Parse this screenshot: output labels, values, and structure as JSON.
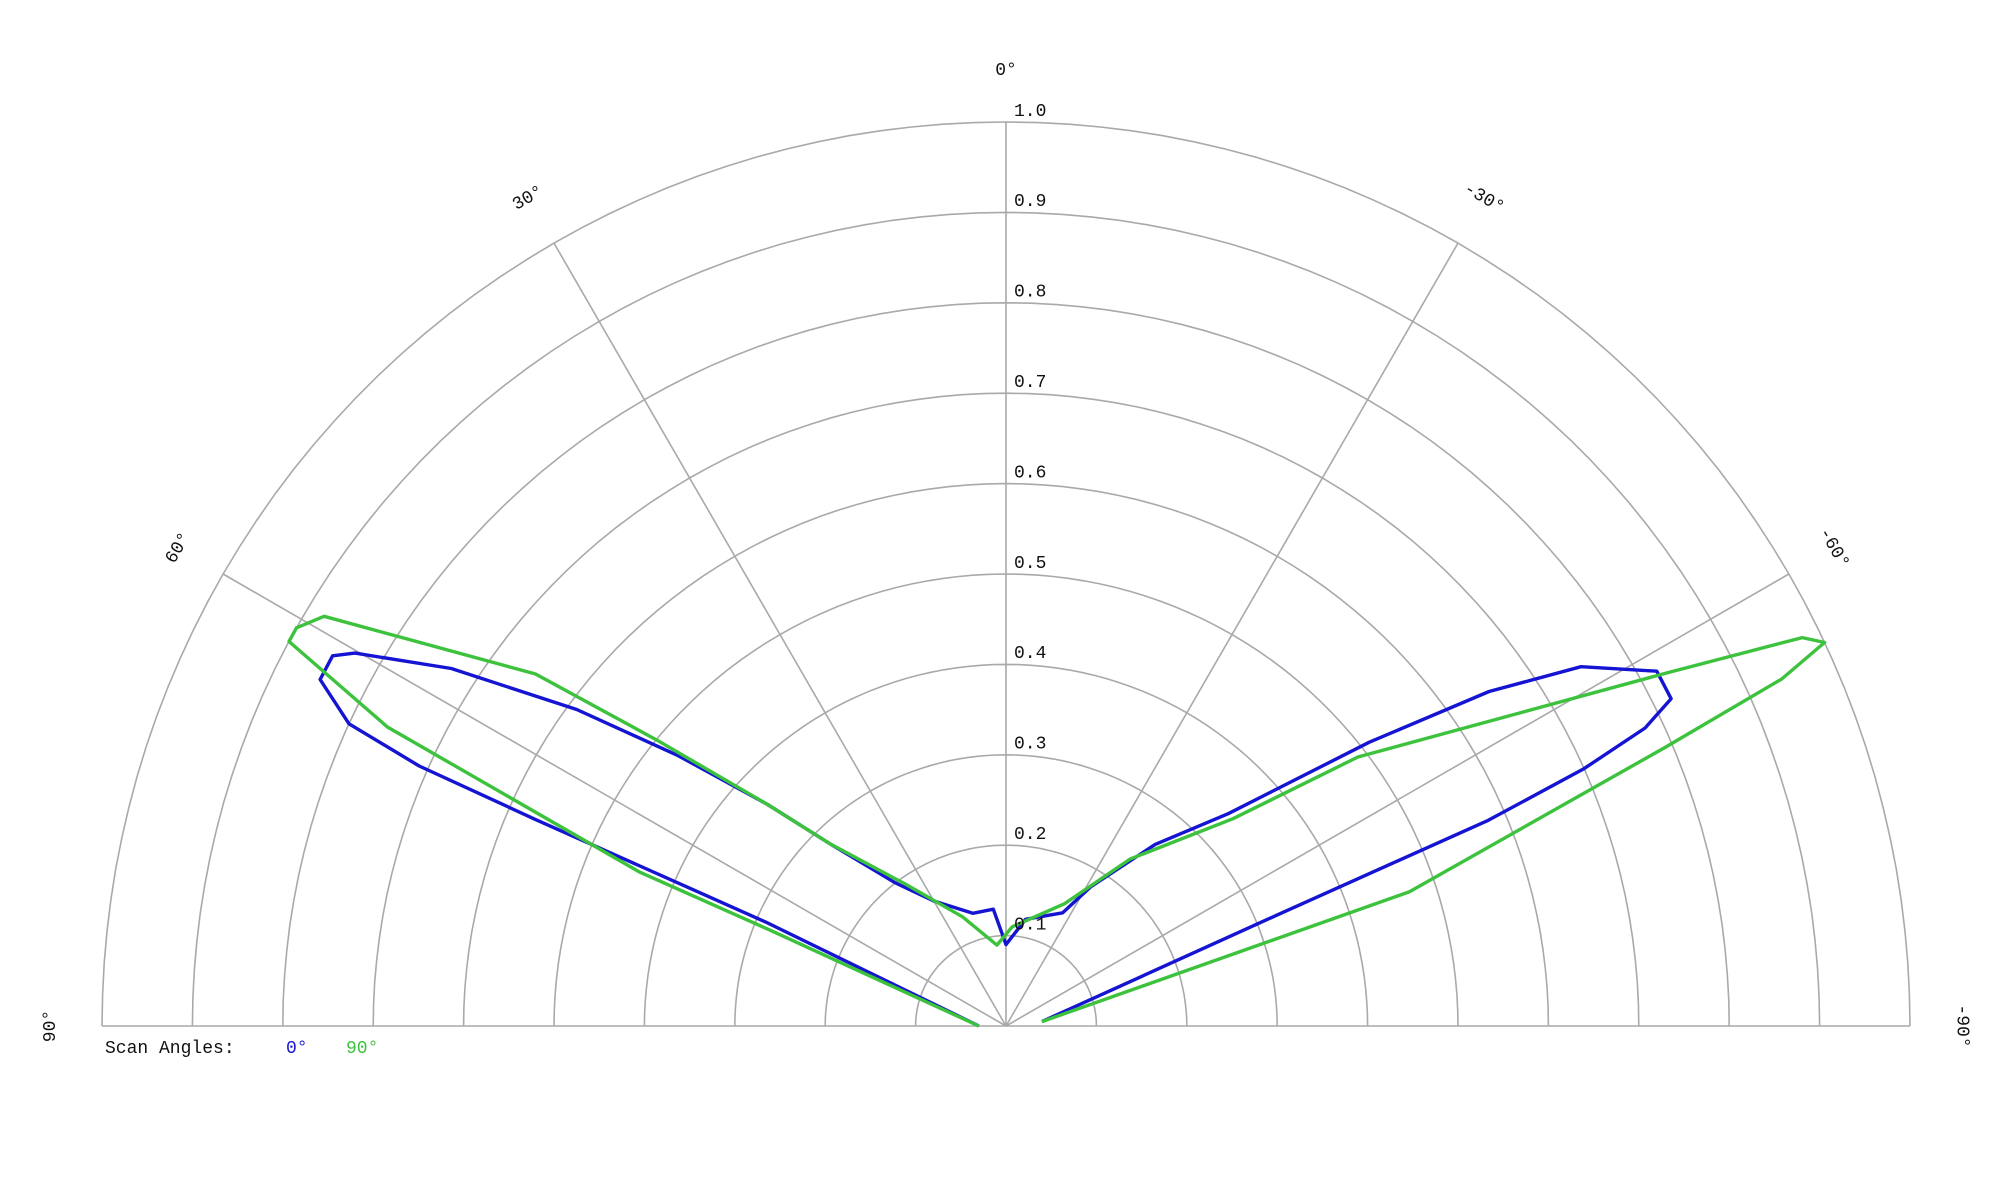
{
  "chart_data": {
    "type": "polar",
    "legend_title": "Scan Angles:",
    "thetalim": [
      -90,
      90
    ],
    "rlim": [
      0,
      1
    ],
    "rticks": [
      0.1,
      0.2,
      0.3,
      0.4,
      0.5,
      0.6,
      0.7,
      0.8,
      0.9,
      {
        "value": 1,
        "label": "1.0"
      }
    ],
    "thetaticks": [
      {
        "value": 90,
        "label": "90°"
      },
      {
        "value": 60,
        "label": "60°"
      },
      {
        "value": 30,
        "label": "30°"
      },
      {
        "value": 0,
        "label": "0°"
      },
      {
        "value": -30,
        "label": "-30°"
      },
      {
        "value": -60,
        "label": "-60°"
      },
      {
        "value": -90,
        "label": "-90°"
      }
    ],
    "series": [
      {
        "name": "0°",
        "color": "#1414d2",
        "theta": [
          90,
          66.6,
          66.3,
          66.1,
          65.3,
          63.2,
          61.2,
          60.2,
          57.2,
          53.6,
          50.5,
          47.1,
          44.0,
          37.7,
          30.1,
          16.4,
          6.2,
          0,
          -10.4,
          -26.6,
          -31.3,
          -39.4,
          -46.3,
          -52,
          -55.3,
          -58,
          -61.4,
          -63.8,
          -65,
          -66,
          -66.9,
          -67.7,
          -83
        ],
        "r": [
          0.03,
          0.29,
          0.57,
          0.71,
          0.8,
          0.85,
          0.85,
          0.83,
          0.73,
          0.59,
          0.47,
          0.36,
          0.28,
          0.2,
          0.16,
          0.13,
          0.13,
          0.09,
          0.12,
          0.14,
          0.18,
          0.26,
          0.34,
          0.51,
          0.65,
          0.75,
          0.82,
          0.82,
          0.78,
          0.7,
          0.58,
          0.33,
          0.04
        ]
      },
      {
        "name": "90°",
        "color": "#3cc23c",
        "theta": [
          90,
          67.9,
          67.2,
          64.2,
          61.8,
          60.7,
          59.0,
          53.2,
          50.7,
          47.1,
          44.0,
          35.0,
          21.7,
          6.4,
          -3.6,
          -25.6,
          -36.6,
          -47.6,
          -52.6,
          -61.9,
          -64.0,
          -64.9,
          -65.9,
          -67.1,
          -71.6,
          -83
        ],
        "r": [
          0.03,
          0.28,
          0.44,
          0.76,
          0.9,
          0.9,
          0.88,
          0.65,
          0.5,
          0.36,
          0.28,
          0.19,
          0.13,
          0.09,
          0.11,
          0.15,
          0.23,
          0.34,
          0.49,
          0.83,
          0.98,
          1.0,
          0.94,
          0.79,
          0.47,
          0.04
        ]
      }
    ]
  }
}
